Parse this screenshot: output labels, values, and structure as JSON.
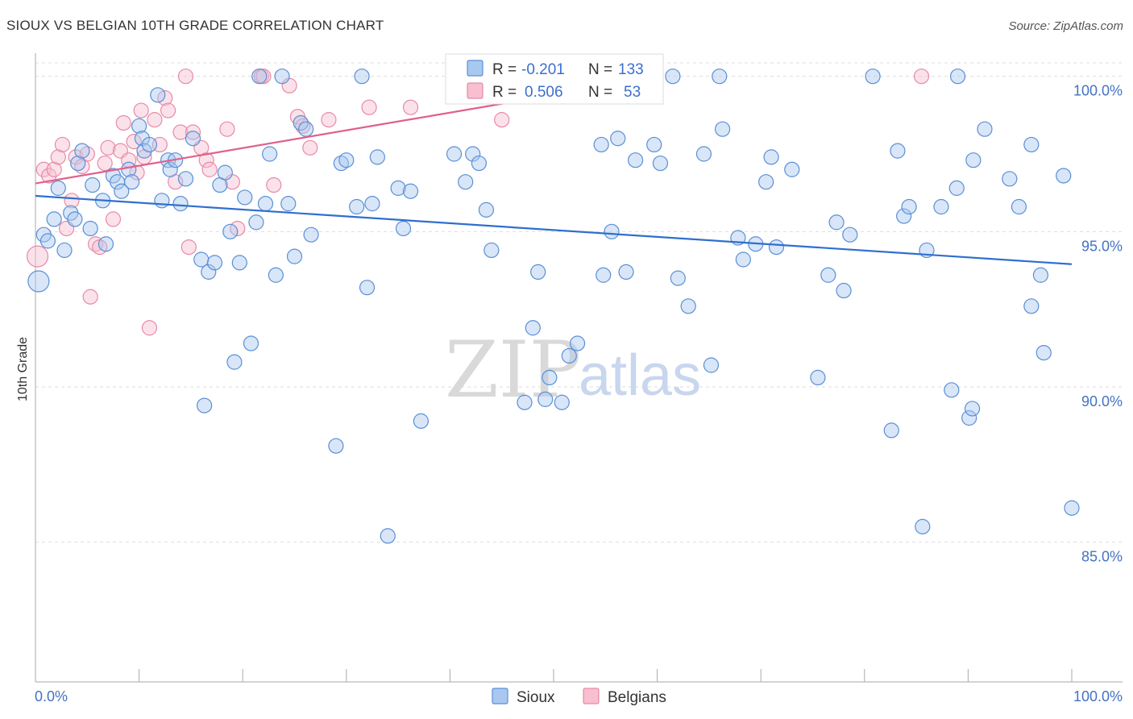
{
  "title": "SIOUX VS BELGIAN 10TH GRADE CORRELATION CHART",
  "source": "Source: ZipAtlas.com",
  "watermark": {
    "zip": "ZIP",
    "atlas": "atlas"
  },
  "colors": {
    "sioux_fill": "#a9c8f0",
    "sioux_stroke": "#5b8fd6",
    "sioux_line": "#2f6fcf",
    "belgian_fill": "#f7bfd0",
    "belgian_stroke": "#e88aa6",
    "belgian_line": "#e0608a",
    "grid": "#dddddd",
    "tick_label": "#4472c4"
  },
  "legend": {
    "sioux": {
      "r_label": "R =",
      "r_value": "-0.201",
      "n_label": "N =",
      "n_value": "133"
    },
    "belgian": {
      "r_label": "R =",
      "r_value": "0.506",
      "n_label": "N =",
      "n_value": "53"
    }
  },
  "chart_data": {
    "type": "scatter",
    "title": "SIOUX VS BELGIAN 10TH GRADE CORRELATION CHART",
    "xlabel": "",
    "ylabel": "10th Grade",
    "xlim": [
      0,
      100
    ],
    "ylim": [
      80.5,
      100.9
    ],
    "x_tick_labels": [
      "0.0%",
      "100.0%"
    ],
    "y_ticks": [
      85,
      90,
      95,
      100
    ],
    "y_tick_labels": [
      "85.0%",
      "90.0%",
      "95.0%",
      "100.0%"
    ],
    "grid": true,
    "legend_position": "top-center",
    "series": [
      {
        "name": "Sioux",
        "trend": {
          "x": [
            0,
            100
          ],
          "y": [
            96.15,
            93.95
          ]
        },
        "points": [
          [
            0.3,
            93.4
          ],
          [
            0.8,
            94.9
          ],
          [
            1.2,
            94.7
          ],
          [
            1.8,
            95.4
          ],
          [
            2.2,
            96.4
          ],
          [
            2.8,
            94.4
          ],
          [
            3.4,
            95.6
          ],
          [
            3.8,
            95.4
          ],
          [
            4.1,
            97.2
          ],
          [
            4.5,
            97.6
          ],
          [
            5.3,
            95.1
          ],
          [
            5.5,
            96.5
          ],
          [
            6.5,
            96.0
          ],
          [
            6.8,
            94.6
          ],
          [
            7.5,
            96.8
          ],
          [
            7.9,
            96.6
          ],
          [
            8.3,
            96.3
          ],
          [
            9.0,
            97.0
          ],
          [
            9.3,
            96.6
          ],
          [
            10.0,
            98.4
          ],
          [
            10.3,
            98.0
          ],
          [
            10.5,
            97.6
          ],
          [
            11.0,
            97.8
          ],
          [
            11.8,
            99.4
          ],
          [
            12.2,
            96.0
          ],
          [
            12.8,
            97.3
          ],
          [
            13.0,
            97.0
          ],
          [
            13.5,
            97.3
          ],
          [
            14.0,
            95.9
          ],
          [
            14.5,
            96.7
          ],
          [
            15.2,
            98.0
          ],
          [
            16.0,
            94.1
          ],
          [
            16.3,
            89.4
          ],
          [
            16.7,
            93.7
          ],
          [
            17.3,
            94.0
          ],
          [
            17.8,
            96.5
          ],
          [
            18.3,
            96.9
          ],
          [
            18.8,
            95.0
          ],
          [
            19.2,
            90.8
          ],
          [
            19.7,
            94.0
          ],
          [
            20.2,
            96.1
          ],
          [
            20.8,
            91.4
          ],
          [
            21.3,
            95.3
          ],
          [
            21.6,
            100.0
          ],
          [
            22.2,
            95.9
          ],
          [
            22.6,
            97.5
          ],
          [
            23.2,
            93.6
          ],
          [
            23.8,
            100.0
          ],
          [
            24.4,
            95.9
          ],
          [
            25.0,
            94.2
          ],
          [
            25.6,
            98.5
          ],
          [
            26.1,
            98.3
          ],
          [
            26.6,
            94.9
          ],
          [
            29.0,
            88.1
          ],
          [
            29.5,
            97.2
          ],
          [
            30.0,
            97.3
          ],
          [
            31.0,
            95.8
          ],
          [
            31.5,
            100.0
          ],
          [
            32.0,
            93.2
          ],
          [
            32.5,
            95.9
          ],
          [
            33.0,
            97.4
          ],
          [
            34.0,
            85.2
          ],
          [
            35.0,
            96.4
          ],
          [
            35.5,
            95.1
          ],
          [
            36.2,
            96.3
          ],
          [
            37.2,
            88.9
          ],
          [
            40.4,
            97.5
          ],
          [
            41.5,
            96.6
          ],
          [
            42.2,
            97.5
          ],
          [
            42.8,
            97.2
          ],
          [
            43.5,
            95.7
          ],
          [
            44.0,
            94.4
          ],
          [
            46.2,
            100.0
          ],
          [
            47.2,
            89.5
          ],
          [
            48.0,
            91.9
          ],
          [
            48.5,
            93.7
          ],
          [
            49.2,
            89.6
          ],
          [
            49.6,
            90.3
          ],
          [
            50.2,
            100.0
          ],
          [
            50.8,
            89.5
          ],
          [
            51.5,
            91.0
          ],
          [
            52.3,
            91.4
          ],
          [
            54.6,
            97.8
          ],
          [
            54.8,
            93.6
          ],
          [
            55.6,
            95.0
          ],
          [
            56.2,
            98.0
          ],
          [
            57.0,
            93.7
          ],
          [
            57.9,
            97.3
          ],
          [
            59.7,
            97.8
          ],
          [
            60.3,
            97.2
          ],
          [
            61.5,
            100.0
          ],
          [
            62.0,
            93.5
          ],
          [
            63.0,
            92.6
          ],
          [
            64.5,
            97.5
          ],
          [
            65.2,
            90.7
          ],
          [
            66.0,
            100.0
          ],
          [
            66.3,
            98.3
          ],
          [
            67.8,
            94.8
          ],
          [
            68.3,
            94.1
          ],
          [
            69.5,
            94.6
          ],
          [
            70.5,
            96.6
          ],
          [
            71.0,
            97.4
          ],
          [
            71.5,
            94.5
          ],
          [
            73.0,
            97.0
          ],
          [
            75.5,
            90.3
          ],
          [
            76.5,
            93.6
          ],
          [
            77.3,
            95.3
          ],
          [
            78.0,
            93.1
          ],
          [
            78.6,
            94.9
          ],
          [
            80.8,
            100.0
          ],
          [
            82.6,
            88.6
          ],
          [
            83.2,
            97.6
          ],
          [
            83.8,
            95.5
          ],
          [
            84.3,
            95.8
          ],
          [
            85.6,
            85.5
          ],
          [
            86.0,
            94.4
          ],
          [
            87.4,
            95.8
          ],
          [
            88.4,
            89.9
          ],
          [
            88.9,
            96.4
          ],
          [
            89.0,
            100.0
          ],
          [
            90.1,
            89.0
          ],
          [
            90.4,
            89.3
          ],
          [
            90.5,
            97.3
          ],
          [
            91.6,
            98.3
          ],
          [
            94.0,
            96.7
          ],
          [
            94.9,
            95.8
          ],
          [
            96.1,
            97.8
          ],
          [
            96.1,
            92.6
          ],
          [
            97.0,
            93.6
          ],
          [
            97.3,
            91.1
          ],
          [
            99.2,
            96.8
          ],
          [
            100.0,
            86.1
          ]
        ]
      },
      {
        "name": "Belgians",
        "trend": {
          "x": [
            0,
            60.5
          ],
          "y": [
            96.55,
            100.0
          ]
        },
        "points": [
          [
            0.2,
            94.2
          ],
          [
            0.8,
            97.0
          ],
          [
            1.3,
            96.8
          ],
          [
            1.8,
            97.0
          ],
          [
            2.2,
            97.4
          ],
          [
            2.6,
            97.8
          ],
          [
            3.0,
            95.1
          ],
          [
            3.5,
            96.0
          ],
          [
            3.9,
            97.4
          ],
          [
            4.5,
            97.1
          ],
          [
            5.0,
            97.5
          ],
          [
            5.3,
            92.9
          ],
          [
            5.8,
            94.6
          ],
          [
            6.2,
            94.5
          ],
          [
            6.7,
            97.2
          ],
          [
            7.0,
            97.7
          ],
          [
            7.5,
            95.4
          ],
          [
            8.2,
            97.6
          ],
          [
            8.5,
            98.5
          ],
          [
            9.0,
            97.3
          ],
          [
            9.5,
            97.9
          ],
          [
            9.8,
            96.9
          ],
          [
            10.2,
            98.9
          ],
          [
            10.5,
            97.4
          ],
          [
            11.0,
            91.9
          ],
          [
            11.5,
            98.6
          ],
          [
            12.0,
            97.8
          ],
          [
            12.5,
            99.3
          ],
          [
            12.8,
            98.9
          ],
          [
            13.5,
            96.6
          ],
          [
            14.0,
            98.2
          ],
          [
            14.5,
            100.0
          ],
          [
            14.8,
            94.5
          ],
          [
            15.2,
            98.2
          ],
          [
            16.0,
            97.7
          ],
          [
            16.5,
            97.3
          ],
          [
            16.8,
            97.0
          ],
          [
            18.5,
            98.3
          ],
          [
            19.0,
            96.6
          ],
          [
            19.5,
            95.1
          ],
          [
            21.8,
            100.0
          ],
          [
            22.0,
            100.0
          ],
          [
            23.0,
            96.5
          ],
          [
            24.5,
            99.7
          ],
          [
            25.3,
            98.7
          ],
          [
            25.8,
            98.4
          ],
          [
            26.5,
            97.7
          ],
          [
            28.3,
            98.6
          ],
          [
            32.2,
            99.0
          ],
          [
            36.2,
            99.0
          ],
          [
            45.0,
            98.6
          ],
          [
            47.3,
            100.0
          ],
          [
            85.5,
            100.0
          ]
        ]
      }
    ]
  }
}
